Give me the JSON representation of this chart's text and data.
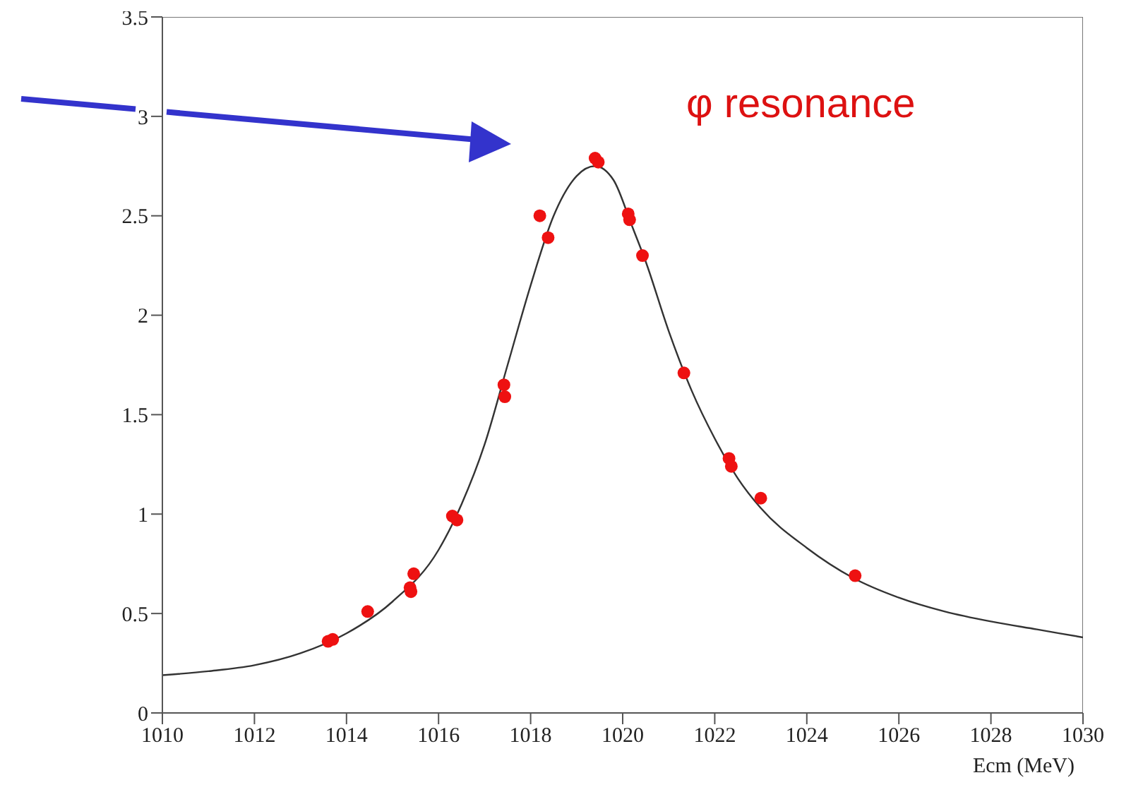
{
  "chart_data": {
    "type": "scatter",
    "xlabel": "Ecm (MeV)",
    "xlim": [
      1010,
      1030
    ],
    "xticks": [
      1010,
      1012,
      1014,
      1016,
      1018,
      1020,
      1022,
      1024,
      1026,
      1028,
      1030
    ],
    "ylim": [
      0,
      3.5
    ],
    "yticks": [
      0,
      0.5,
      1,
      1.5,
      2,
      2.5,
      3,
      3.5
    ],
    "marker": "circle",
    "annotations": [
      "φ resonance"
    ],
    "series": [
      {
        "color": "#ee1111",
        "x": [
          1013.6,
          1013.7,
          1014.46,
          1015.38,
          1015.4,
          1015.46,
          1016.3,
          1016.4,
          1017.42,
          1017.44,
          1018.2,
          1018.38,
          1019.4,
          1019.47,
          1020.12,
          1020.15,
          1020.43,
          1021.33,
          1022.31,
          1022.36,
          1023.0,
          1025.05
        ],
        "values": [
          0.36,
          0.37,
          0.51,
          0.63,
          0.61,
          0.7,
          0.99,
          0.97,
          1.65,
          1.59,
          2.5,
          2.39,
          2.79,
          2.77,
          2.51,
          2.48,
          2.3,
          1.71,
          1.28,
          1.24,
          1.08,
          0.69
        ]
      },
      {
        "type": "line",
        "color": "#333333",
        "marker": "none",
        "x": [
          1010,
          1011,
          1012,
          1013,
          1014,
          1015,
          1016,
          1016.5,
          1017,
          1017.5,
          1018,
          1018.5,
          1019,
          1019.4,
          1019.8,
          1020.2,
          1020.5,
          1021,
          1021.5,
          1022,
          1022.5,
          1023,
          1024,
          1025,
          1026,
          1027,
          1028,
          1029,
          1030
        ],
        "values": [
          0.19,
          0.21,
          0.24,
          0.3,
          0.4,
          0.56,
          0.82,
          1.05,
          1.35,
          1.75,
          2.15,
          2.5,
          2.7,
          2.75,
          2.68,
          2.45,
          2.27,
          1.92,
          1.62,
          1.38,
          1.18,
          1.03,
          0.83,
          0.68,
          0.58,
          0.51,
          0.46,
          0.42,
          0.38
        ]
      }
    ]
  }
}
